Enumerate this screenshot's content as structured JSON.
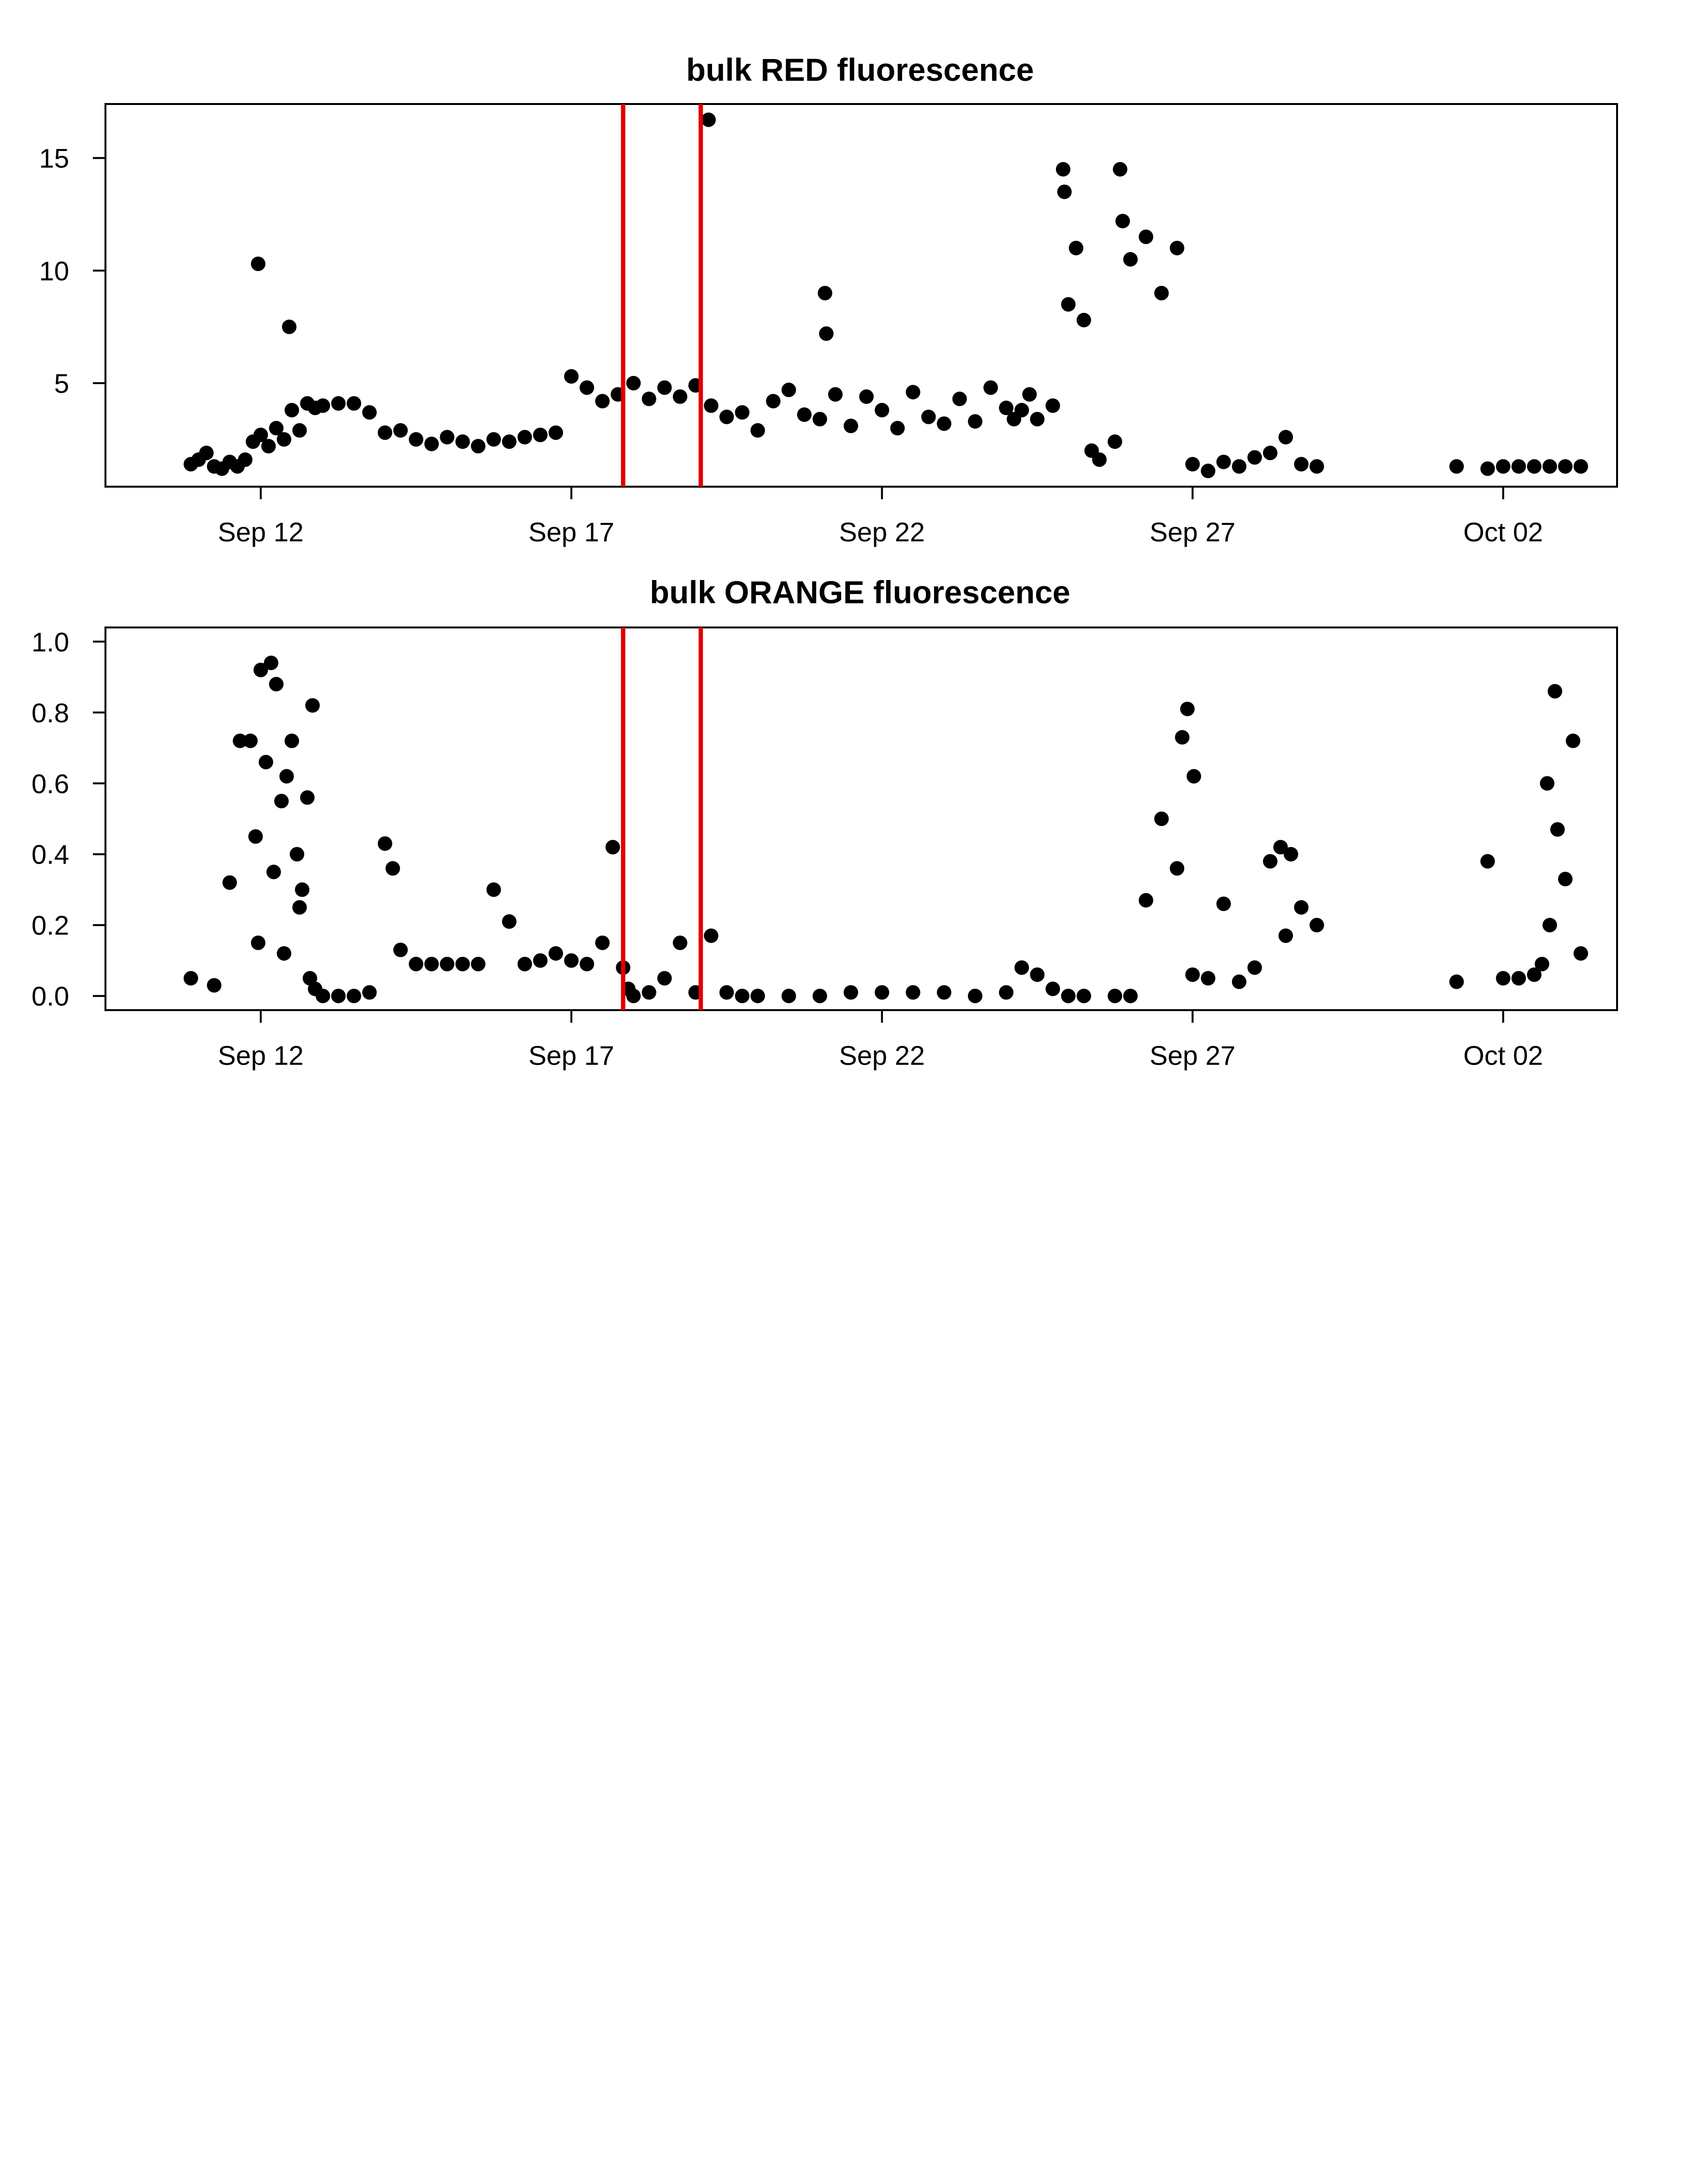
{
  "chart_data": [
    {
      "type": "scatter",
      "title": "bulk RED fluorescence",
      "xlabel": "",
      "ylabel": "",
      "xlim": [
        "2015-09-09T12:00",
        "2015-10-03T20:00"
      ],
      "ylim": [
        0.4,
        17.4
      ],
      "x_ticks": [
        {
          "date": "2015-09-12",
          "label": "Sep 12"
        },
        {
          "date": "2015-09-17",
          "label": "Sep 17"
        },
        {
          "date": "2015-09-22",
          "label": "Sep 22"
        },
        {
          "date": "2015-09-27",
          "label": "Sep 27"
        },
        {
          "date": "2015-10-02",
          "label": "Oct 02"
        }
      ],
      "y_ticks": [
        {
          "value": 5,
          "label": "5"
        },
        {
          "value": 10,
          "label": "10"
        },
        {
          "value": 15,
          "label": "15"
        }
      ],
      "grid": false,
      "marker_color": "#000000",
      "vertical_lines": {
        "color": "#e00000",
        "x": [
          "2015-09-17T20:00",
          "2015-09-19T02:00"
        ]
      },
      "x": [
        "2015-09-10T21:00",
        "2015-09-11T00:00",
        "2015-09-11T03:00",
        "2015-09-11T06:00",
        "2015-09-11T09:00",
        "2015-09-11T12:00",
        "2015-09-11T15:00",
        "2015-09-11T18:00",
        "2015-09-11T21:00",
        "2015-09-12T00:00",
        "2015-09-12T03:00",
        "2015-09-12T06:00",
        "2015-09-12T09:00",
        "2015-09-12T12:00",
        "2015-09-12T15:00",
        "2015-09-12T18:00",
        "2015-09-12T21:00",
        "2015-09-13T00:00",
        "2015-09-13T06:00",
        "2015-09-13T12:00",
        "2015-09-13T18:00",
        "2015-09-14T00:00",
        "2015-09-14T06:00",
        "2015-09-14T12:00",
        "2015-09-14T18:00",
        "2015-09-15T00:00",
        "2015-09-15T06:00",
        "2015-09-15T12:00",
        "2015-09-15T18:00",
        "2015-09-16T00:00",
        "2015-09-16T06:00",
        "2015-09-16T12:00",
        "2015-09-16T18:00",
        "2015-09-17T00:00",
        "2015-09-17T06:00",
        "2015-09-17T12:00",
        "2015-09-17T18:00",
        "2015-09-18T00:00",
        "2015-09-18T06:00",
        "2015-09-18T12:00",
        "2015-09-18T18:00",
        "2015-09-19T00:00",
        "2015-09-19T06:00",
        "2015-09-19T12:00",
        "2015-09-19T18:00",
        "2015-09-20T00:00",
        "2015-09-20T06:00",
        "2015-09-20T12:00",
        "2015-09-20T18:00",
        "2015-09-21T00:00",
        "2015-09-21T06:00",
        "2015-09-21T12:00",
        "2015-09-21T18:00",
        "2015-09-22T00:00",
        "2015-09-22T06:00",
        "2015-09-22T12:00",
        "2015-09-22T18:00",
        "2015-09-23T00:00",
        "2015-09-23T06:00",
        "2015-09-23T12:00",
        "2015-09-23T18:00",
        "2015-09-24T00:00",
        "2015-09-24T03:00",
        "2015-09-24T06:00",
        "2015-09-24T09:00",
        "2015-09-24T12:00",
        "2015-09-24T18:00",
        "2015-09-25T00:00",
        "2015-09-25T03:00",
        "2015-09-25T06:00",
        "2015-09-25T09:00",
        "2015-09-25T12:00",
        "2015-09-25T18:00",
        "2015-09-26T00:00",
        "2015-09-26T06:00",
        "2015-09-26T12:00",
        "2015-09-26T18:00",
        "2015-09-27T00:00",
        "2015-09-27T06:00",
        "2015-09-27T12:00",
        "2015-09-27T18:00",
        "2015-09-28T00:00",
        "2015-09-28T06:00",
        "2015-09-28T12:00",
        "2015-09-28T18:00",
        "2015-09-29T00:00",
        "2015-10-01T06:00",
        "2015-10-01T18:00",
        "2015-10-02T00:00",
        "2015-10-02T06:00",
        "2015-10-02T12:00",
        "2015-10-02T18:00",
        "2015-10-03T00:00",
        "2015-10-03T06:00",
        "2015-09-11T23:00",
        "2015-09-12T11:00",
        "2015-09-19T05:00",
        "2015-09-21T02:00",
        "2015-09-21T02:30",
        "2015-09-24T22:00",
        "2015-09-24T22:30",
        "2015-09-25T20:00",
        "2015-09-25T21:00"
      ],
      "y": [
        1.4,
        1.6,
        1.9,
        1.3,
        1.2,
        1.5,
        1.3,
        1.6,
        2.4,
        2.7,
        2.2,
        3.0,
        2.5,
        3.8,
        2.9,
        4.1,
        3.9,
        4.0,
        4.1,
        4.1,
        3.7,
        2.8,
        2.9,
        2.5,
        2.3,
        2.6,
        2.4,
        2.2,
        2.5,
        2.4,
        2.6,
        2.7,
        2.8,
        5.3,
        4.8,
        4.2,
        4.5,
        5.0,
        4.3,
        4.8,
        4.4,
        4.9,
        4.0,
        3.5,
        3.7,
        2.9,
        4.2,
        4.7,
        3.6,
        3.4,
        4.5,
        3.1,
        4.4,
        3.8,
        3.0,
        4.6,
        3.5,
        3.2,
        4.3,
        3.3,
        4.8,
        3.9,
        3.4,
        3.8,
        4.5,
        3.4,
        4.0,
        8.5,
        11.0,
        7.8,
        2.0,
        1.6,
        2.4,
        10.5,
        11.5,
        9.0,
        11.0,
        1.4,
        1.1,
        1.5,
        1.3,
        1.7,
        1.9,
        2.6,
        1.4,
        1.3,
        1.3,
        1.2,
        1.3,
        1.3,
        1.3,
        1.3,
        1.3,
        1.3,
        10.3,
        7.5,
        16.7,
        9.0,
        7.2,
        14.5,
        13.5,
        14.5,
        12.2
      ]
    },
    {
      "type": "scatter",
      "title": "bulk ORANGE fluorescence",
      "xlabel": "",
      "ylabel": "",
      "xlim": [
        "2015-09-09T12:00",
        "2015-10-03T20:00"
      ],
      "ylim": [
        -0.04,
        1.04
      ],
      "x_ticks": [
        {
          "date": "2015-09-12",
          "label": "Sep 12"
        },
        {
          "date": "2015-09-17",
          "label": "Sep 17"
        },
        {
          "date": "2015-09-22",
          "label": "Sep 22"
        },
        {
          "date": "2015-09-27",
          "label": "Sep 27"
        },
        {
          "date": "2015-10-02",
          "label": "Oct 02"
        }
      ],
      "y_ticks": [
        {
          "value": 0.0,
          "label": "0.0"
        },
        {
          "value": 0.2,
          "label": "0.2"
        },
        {
          "value": 0.4,
          "label": "0.4"
        },
        {
          "value": 0.6,
          "label": "0.6"
        },
        {
          "value": 0.8,
          "label": "0.8"
        },
        {
          "value": 1.0,
          "label": "1.0"
        }
      ],
      "grid": false,
      "marker_color": "#000000",
      "vertical_lines": {
        "color": "#e00000",
        "x": [
          "2015-09-17T20:00",
          "2015-09-19T02:00"
        ]
      },
      "x": [
        "2015-09-10T21:00",
        "2015-09-11T06:00",
        "2015-09-11T12:00",
        "2015-09-11T16:00",
        "2015-09-11T20:00",
        "2015-09-11T22:00",
        "2015-09-12T00:00",
        "2015-09-12T02:00",
        "2015-09-12T04:00",
        "2015-09-12T06:00",
        "2015-09-12T08:00",
        "2015-09-12T10:00",
        "2015-09-12T12:00",
        "2015-09-12T14:00",
        "2015-09-12T16:00",
        "2015-09-12T18:00",
        "2015-09-12T20:00",
        "2015-09-11T23:00",
        "2015-09-12T05:00",
        "2015-09-12T09:00",
        "2015-09-12T15:00",
        "2015-09-12T19:00",
        "2015-09-12T21:00",
        "2015-09-13T00:00",
        "2015-09-13T06:00",
        "2015-09-13T12:00",
        "2015-09-13T18:00",
        "2015-09-14T00:00",
        "2015-09-14T03:00",
        "2015-09-14T06:00",
        "2015-09-14T12:00",
        "2015-09-14T18:00",
        "2015-09-15T00:00",
        "2015-09-15T06:00",
        "2015-09-15T12:00",
        "2015-09-15T18:00",
        "2015-09-16T00:00",
        "2015-09-16T06:00",
        "2015-09-16T12:00",
        "2015-09-16T18:00",
        "2015-09-17T00:00",
        "2015-09-17T06:00",
        "2015-09-17T12:00",
        "2015-09-17T16:00",
        "2015-09-17T20:00",
        "2015-09-17T22:00",
        "2015-09-18T00:00",
        "2015-09-18T06:00",
        "2015-09-18T12:00",
        "2015-09-18T18:00",
        "2015-09-19T00:00",
        "2015-09-19T06:00",
        "2015-09-19T12:00",
        "2015-09-19T18:00",
        "2015-09-20T00:00",
        "2015-09-20T12:00",
        "2015-09-21T00:00",
        "2015-09-21T12:00",
        "2015-09-22T00:00",
        "2015-09-22T12:00",
        "2015-09-23T00:00",
        "2015-09-23T12:00",
        "2015-09-24T00:00",
        "2015-09-24T06:00",
        "2015-09-24T12:00",
        "2015-09-24T18:00",
        "2015-09-25T00:00",
        "2015-09-25T06:00",
        "2015-09-25T18:00",
        "2015-09-26T00:00",
        "2015-09-26T06:00",
        "2015-09-26T12:00",
        "2015-09-26T18:00",
        "2015-09-27T00:00",
        "2015-09-27T06:00",
        "2015-09-27T12:00",
        "2015-09-27T18:00",
        "2015-09-28T00:00",
        "2015-09-28T06:00",
        "2015-09-28T12:00",
        "2015-09-28T18:00",
        "2015-09-29T00:00",
        "2015-10-01T06:00",
        "2015-10-01T18:00",
        "2015-10-02T00:00",
        "2015-10-02T06:00",
        "2015-10-02T12:00",
        "2015-10-02T15:00",
        "2015-10-02T18:00",
        "2015-10-02T21:00",
        "2015-10-03T00:00",
        "2015-10-03T03:00",
        "2015-10-03T06:00",
        "2015-09-26T20:00",
        "2015-09-26T22:00",
        "2015-09-27T00:30",
        "2015-09-28T10:00",
        "2015-09-28T14:00",
        "2015-10-02T17:00",
        "2015-10-02T20:00"
      ],
      "y": [
        0.05,
        0.03,
        0.32,
        0.72,
        0.72,
        0.45,
        0.92,
        0.66,
        0.94,
        0.88,
        0.55,
        0.62,
        0.72,
        0.4,
        0.3,
        0.56,
        0.82,
        0.15,
        0.35,
        0.12,
        0.25,
        0.05,
        0.02,
        0.0,
        0.0,
        0.0,
        0.01,
        0.43,
        0.36,
        0.13,
        0.09,
        0.09,
        0.09,
        0.09,
        0.09,
        0.3,
        0.21,
        0.09,
        0.1,
        0.12,
        0.1,
        0.09,
        0.15,
        0.42,
        0.08,
        0.02,
        0.0,
        0.01,
        0.05,
        0.15,
        0.01,
        0.17,
        0.01,
        0.0,
        0.0,
        0.0,
        0.0,
        0.01,
        0.01,
        0.01,
        0.01,
        0.0,
        0.01,
        0.08,
        0.06,
        0.02,
        0.0,
        0.0,
        0.0,
        0.0,
        0.27,
        0.5,
        0.36,
        0.06,
        0.05,
        0.26,
        0.04,
        0.08,
        0.38,
        0.17,
        0.25,
        0.2,
        0.04,
        0.38,
        0.05,
        0.05,
        0.06,
        0.09,
        0.2,
        0.47,
        0.33,
        0.72,
        0.12,
        0.73,
        0.81,
        0.62,
        0.42,
        0.4,
        0.6,
        0.86
      ]
    }
  ]
}
